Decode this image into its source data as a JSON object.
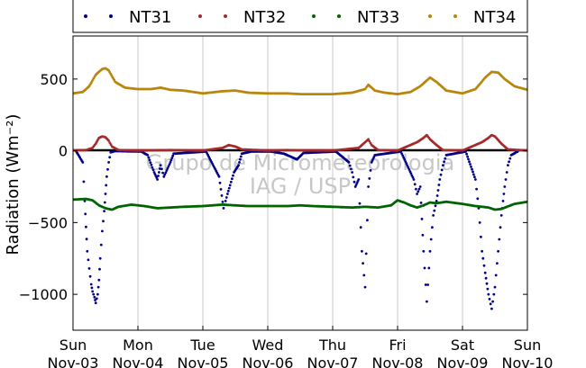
{
  "chart_data": {
    "type": "scatter",
    "ylabel": "Radiation (Wm⁻²)",
    "ylim": [
      -1250,
      800
    ],
    "xlim": [
      0,
      7
    ],
    "yticks": [
      500,
      0,
      -500,
      -1000
    ],
    "ytick_labels": [
      "500",
      "0",
      "−5​00",
      "−10​00"
    ],
    "ytick_display": [
      "500",
      "0",
      "−500",
      "−1000"
    ],
    "xticks": [
      0,
      1,
      2,
      3,
      4,
      5,
      6,
      7
    ],
    "xtick_labels": [
      [
        "Sun",
        "Nov-03"
      ],
      [
        "Mon",
        "Nov-04"
      ],
      [
        "Tue",
        "Nov-05"
      ],
      [
        "Wed",
        "Nov-06"
      ],
      [
        "Thu",
        "Nov-07"
      ],
      [
        "Fri",
        "Nov-08"
      ],
      [
        "Sat",
        "Nov-09"
      ],
      [
        "Sun",
        "Nov-10"
      ]
    ],
    "grid": "vertical",
    "zero_line": true,
    "legend_position": "top",
    "watermark": [
      "Grupo de Micrometeorologia",
      "IAG / USP"
    ],
    "series": [
      {
        "name": "NT31",
        "color": "#00008b",
        "points": [
          [
            0.05,
            -5
          ],
          [
            0.15,
            -80
          ],
          [
            0.18,
            -350
          ],
          [
            0.2,
            -530
          ],
          [
            0.22,
            -700
          ],
          [
            0.25,
            -820
          ],
          [
            0.28,
            -930
          ],
          [
            0.3,
            -980
          ],
          [
            0.33,
            -1020
          ],
          [
            0.35,
            -1060
          ],
          [
            0.38,
            -1000
          ],
          [
            0.4,
            -900
          ],
          [
            0.42,
            -750
          ],
          [
            0.45,
            -560
          ],
          [
            0.48,
            -420
          ],
          [
            0.5,
            -300
          ],
          [
            0.52,
            -180
          ],
          [
            0.55,
            -80
          ],
          [
            0.58,
            -10
          ],
          [
            0.65,
            -2
          ],
          [
            1.05,
            -5
          ],
          [
            1.15,
            -30
          ],
          [
            1.25,
            -150
          ],
          [
            1.3,
            -200
          ],
          [
            1.35,
            -100
          ],
          [
            1.4,
            -180
          ],
          [
            1.5,
            -80
          ],
          [
            1.55,
            -20
          ],
          [
            2.05,
            -5
          ],
          [
            2.25,
            -180
          ],
          [
            2.32,
            -400
          ],
          [
            2.38,
            -300
          ],
          [
            2.42,
            -240
          ],
          [
            2.48,
            -150
          ],
          [
            2.55,
            -100
          ],
          [
            2.6,
            -20
          ],
          [
            2.75,
            -5
          ],
          [
            3.05,
            -5
          ],
          [
            3.25,
            -20
          ],
          [
            3.35,
            -40
          ],
          [
            3.45,
            -60
          ],
          [
            3.55,
            -15
          ],
          [
            4.05,
            -5
          ],
          [
            4.25,
            -80
          ],
          [
            4.3,
            -150
          ],
          [
            4.35,
            -250
          ],
          [
            4.4,
            -200
          ],
          [
            4.45,
            -700
          ],
          [
            4.5,
            -950
          ],
          [
            4.55,
            -250
          ],
          [
            4.6,
            -80
          ],
          [
            4.65,
            -30
          ],
          [
            5.05,
            -5
          ],
          [
            5.25,
            -200
          ],
          [
            5.3,
            -300
          ],
          [
            5.35,
            -250
          ],
          [
            5.4,
            -700
          ],
          [
            5.45,
            -1050
          ],
          [
            5.5,
            -700
          ],
          [
            5.55,
            -450
          ],
          [
            5.6,
            -350
          ],
          [
            5.65,
            -200
          ],
          [
            5.7,
            -100
          ],
          [
            5.75,
            -30
          ],
          [
            6.05,
            -5
          ],
          [
            6.2,
            -200
          ],
          [
            6.25,
            -400
          ],
          [
            6.3,
            -700
          ],
          [
            6.35,
            -850
          ],
          [
            6.4,
            -1000
          ],
          [
            6.45,
            -1100
          ],
          [
            6.5,
            -950
          ],
          [
            6.55,
            -700
          ],
          [
            6.6,
            -450
          ],
          [
            6.65,
            -250
          ],
          [
            6.7,
            -100
          ],
          [
            6.75,
            -30
          ],
          [
            6.85,
            -5
          ]
        ]
      },
      {
        "name": "NT32",
        "color": "#a52a2a",
        "points": [
          [
            0.0,
            3
          ],
          [
            0.2,
            5
          ],
          [
            0.3,
            20
          ],
          [
            0.35,
            50
          ],
          [
            0.4,
            90
          ],
          [
            0.45,
            100
          ],
          [
            0.5,
            95
          ],
          [
            0.55,
            70
          ],
          [
            0.6,
            30
          ],
          [
            0.7,
            5
          ],
          [
            1.0,
            2
          ],
          [
            1.5,
            5
          ],
          [
            2.0,
            2
          ],
          [
            2.3,
            20
          ],
          [
            2.4,
            40
          ],
          [
            2.5,
            30
          ],
          [
            2.6,
            10
          ],
          [
            3.0,
            2
          ],
          [
            3.3,
            5
          ],
          [
            3.5,
            3
          ],
          [
            4.0,
            2
          ],
          [
            4.4,
            20
          ],
          [
            4.5,
            60
          ],
          [
            4.55,
            80
          ],
          [
            4.6,
            40
          ],
          [
            4.7,
            5
          ],
          [
            5.0,
            2
          ],
          [
            5.3,
            60
          ],
          [
            5.4,
            90
          ],
          [
            5.45,
            110
          ],
          [
            5.5,
            80
          ],
          [
            5.6,
            40
          ],
          [
            5.7,
            5
          ],
          [
            6.0,
            2
          ],
          [
            6.3,
            60
          ],
          [
            6.4,
            90
          ],
          [
            6.45,
            110
          ],
          [
            6.5,
            100
          ],
          [
            6.6,
            50
          ],
          [
            6.7,
            10
          ],
          [
            7.0,
            2
          ]
        ]
      },
      {
        "name": "NT33",
        "color": "#006400",
        "points": [
          [
            0.0,
            -340
          ],
          [
            0.2,
            -335
          ],
          [
            0.3,
            -345
          ],
          [
            0.4,
            -380
          ],
          [
            0.5,
            -400
          ],
          [
            0.6,
            -410
          ],
          [
            0.7,
            -390
          ],
          [
            0.9,
            -375
          ],
          [
            1.1,
            -385
          ],
          [
            1.3,
            -400
          ],
          [
            1.5,
            -395
          ],
          [
            1.7,
            -390
          ],
          [
            2.0,
            -385
          ],
          [
            2.3,
            -375
          ],
          [
            2.5,
            -380
          ],
          [
            2.7,
            -385
          ],
          [
            3.0,
            -385
          ],
          [
            3.3,
            -385
          ],
          [
            3.5,
            -380
          ],
          [
            3.7,
            -385
          ],
          [
            4.0,
            -390
          ],
          [
            4.3,
            -395
          ],
          [
            4.5,
            -390
          ],
          [
            4.7,
            -395
          ],
          [
            4.9,
            -380
          ],
          [
            5.0,
            -345
          ],
          [
            5.1,
            -360
          ],
          [
            5.2,
            -380
          ],
          [
            5.3,
            -395
          ],
          [
            5.4,
            -380
          ],
          [
            5.5,
            -360
          ],
          [
            5.6,
            -365
          ],
          [
            5.75,
            -355
          ],
          [
            6.0,
            -370
          ],
          [
            6.2,
            -385
          ],
          [
            6.4,
            -395
          ],
          [
            6.5,
            -410
          ],
          [
            6.6,
            -405
          ],
          [
            6.8,
            -370
          ],
          [
            7.0,
            -355
          ]
        ]
      },
      {
        "name": "NT34",
        "color": "#b8860b",
        "points": [
          [
            0.0,
            400
          ],
          [
            0.15,
            410
          ],
          [
            0.25,
            450
          ],
          [
            0.35,
            530
          ],
          [
            0.45,
            570
          ],
          [
            0.5,
            575
          ],
          [
            0.55,
            560
          ],
          [
            0.65,
            480
          ],
          [
            0.8,
            440
          ],
          [
            1.0,
            430
          ],
          [
            1.2,
            430
          ],
          [
            1.35,
            440
          ],
          [
            1.5,
            425
          ],
          [
            1.7,
            420
          ],
          [
            2.0,
            400
          ],
          [
            2.3,
            415
          ],
          [
            2.5,
            420
          ],
          [
            2.7,
            405
          ],
          [
            3.0,
            400
          ],
          [
            3.3,
            400
          ],
          [
            3.5,
            395
          ],
          [
            3.7,
            395
          ],
          [
            4.0,
            395
          ],
          [
            4.3,
            405
          ],
          [
            4.5,
            430
          ],
          [
            4.55,
            460
          ],
          [
            4.65,
            420
          ],
          [
            4.8,
            405
          ],
          [
            5.0,
            395
          ],
          [
            5.2,
            410
          ],
          [
            5.35,
            450
          ],
          [
            5.45,
            490
          ],
          [
            5.5,
            510
          ],
          [
            5.6,
            480
          ],
          [
            5.75,
            420
          ],
          [
            6.0,
            400
          ],
          [
            6.2,
            430
          ],
          [
            6.35,
            510
          ],
          [
            6.45,
            550
          ],
          [
            6.55,
            545
          ],
          [
            6.65,
            500
          ],
          [
            6.8,
            450
          ],
          [
            7.0,
            425
          ]
        ]
      }
    ]
  }
}
